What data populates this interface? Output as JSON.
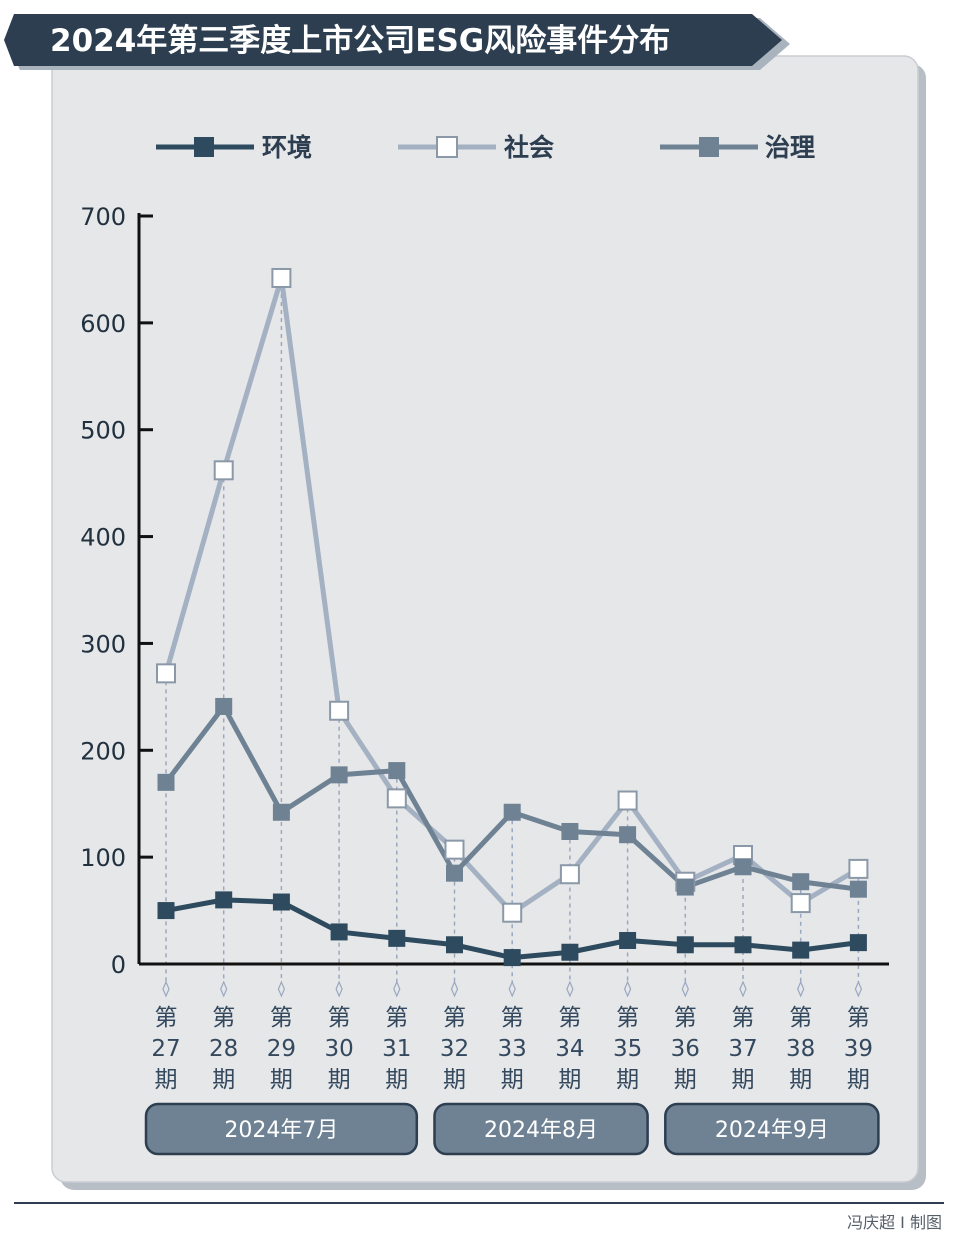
{
  "chart_data": {
    "type": "line",
    "title": "2024年第三季度上市公司ESG风险事件分布",
    "credit": "冯庆超 I 制图",
    "ylim": [
      0,
      700
    ],
    "yticks": [
      "0",
      "100",
      "200",
      "300",
      "400",
      "500",
      "600",
      "700"
    ],
    "categories": [
      {
        "line1": "第",
        "line2": "27",
        "line3": "期"
      },
      {
        "line1": "第",
        "line2": "28",
        "line3": "期"
      },
      {
        "line1": "第",
        "line2": "29",
        "line3": "期"
      },
      {
        "line1": "第",
        "line2": "30",
        "line3": "期"
      },
      {
        "line1": "第",
        "line2": "31",
        "line3": "期"
      },
      {
        "line1": "第",
        "line2": "32",
        "line3": "期"
      },
      {
        "line1": "第",
        "line2": "33",
        "line3": "期"
      },
      {
        "line1": "第",
        "line2": "34",
        "line3": "期"
      },
      {
        "line1": "第",
        "line2": "35",
        "line3": "期"
      },
      {
        "line1": "第",
        "line2": "36",
        "line3": "期"
      },
      {
        "line1": "第",
        "line2": "37",
        "line3": "期"
      },
      {
        "line1": "第",
        "line2": "38",
        "line3": "期"
      },
      {
        "line1": "第",
        "line2": "39",
        "line3": "期"
      }
    ],
    "months": [
      {
        "label": "2024年7月",
        "from": 0,
        "to": 4
      },
      {
        "label": "2024年8月",
        "from": 5,
        "to": 8
      },
      {
        "label": "2024年9月",
        "from": 9,
        "to": 12
      }
    ],
    "series": [
      {
        "name": "环境",
        "color": "#2e4a5e",
        "marker_fill": "#2e4a5e",
        "values": [
          50,
          60,
          58,
          30,
          24,
          18,
          6,
          11,
          22,
          18,
          18,
          13,
          20
        ]
      },
      {
        "name": "社会",
        "color": "#a3b1c2",
        "marker_fill": "#ffffff",
        "values": [
          272,
          462,
          642,
          237,
          155,
          107,
          48,
          84,
          153,
          77,
          102,
          57,
          89
        ]
      },
      {
        "name": "治理",
        "color": "#6e8294",
        "marker_fill": "#6e8294",
        "values": [
          170,
          241,
          142,
          177,
          181,
          85,
          142,
          124,
          121,
          72,
          91,
          77,
          70
        ]
      }
    ]
  }
}
